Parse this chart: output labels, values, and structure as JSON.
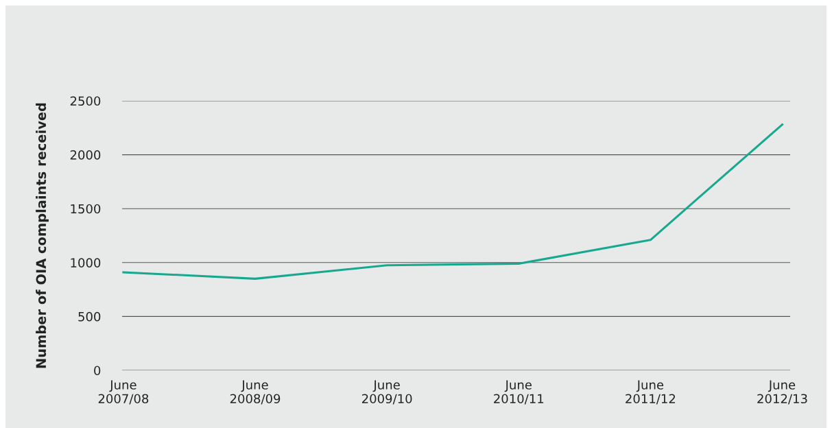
{
  "chart_data": {
    "type": "line",
    "ylabel": "Number of OIA complaints received",
    "categories": [
      "June\n2007/08",
      "June\n2008/09",
      "June\n2009/10",
      "June\n2010/11",
      "June\n2011/12",
      "June\n2012/13"
    ],
    "series": [
      {
        "color": "#17a98f",
        "values": [
          910,
          850,
          975,
          990,
          1210,
          2280
        ]
      }
    ],
    "ylim": [
      0,
      2500
    ],
    "yticks": [
      0,
      500,
      1000,
      1500,
      2000,
      2500
    ],
    "grid": "y",
    "marker": "none",
    "line_style": "solid"
  }
}
